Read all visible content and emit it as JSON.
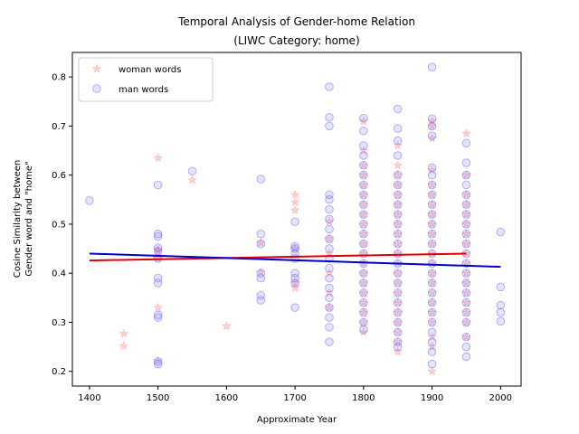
{
  "chart_data": {
    "type": "scatter",
    "title_line1": "Temporal Analysis of Gender-home Relation",
    "title_line2": "(LIWC Category: home)",
    "xlabel": "Approximate Year",
    "ylabel_line1": "Cosine Similarity between",
    "ylabel_line2": "Gender word and \"home\"",
    "xlim": [
      1375,
      2030
    ],
    "ylim": [
      0.17,
      0.85
    ],
    "xticks": [
      1400,
      1500,
      1600,
      1700,
      1800,
      1900,
      2000
    ],
    "yticks": [
      0.2,
      0.3,
      0.4,
      0.5,
      0.6,
      0.7,
      0.8
    ],
    "ytick_labels": [
      "0.2",
      "0.3",
      "0.4",
      "0.5",
      "0.6",
      "0.7",
      "0.8"
    ],
    "grid": false,
    "legend_position": "top-left",
    "series": [
      {
        "name": "woman words",
        "marker": "star",
        "color": "#ff8080",
        "alpha": 0.35,
        "points": [
          [
            1450,
            0.277
          ],
          [
            1450,
            0.252
          ],
          [
            1500,
            0.635
          ],
          [
            1500,
            0.448
          ],
          [
            1500,
            0.445
          ],
          [
            1500,
            0.43
          ],
          [
            1500,
            0.33
          ],
          [
            1500,
            0.222
          ],
          [
            1550,
            0.59
          ],
          [
            1600,
            0.292
          ],
          [
            1650,
            0.462
          ],
          [
            1650,
            0.402
          ],
          [
            1700,
            0.56
          ],
          [
            1700,
            0.545
          ],
          [
            1700,
            0.528
          ],
          [
            1700,
            0.45
          ],
          [
            1700,
            0.38
          ],
          [
            1700,
            0.37
          ],
          [
            1750,
            0.505
          ],
          [
            1750,
            0.47
          ],
          [
            1750,
            0.44
          ],
          [
            1750,
            0.4
          ],
          [
            1750,
            0.36
          ],
          [
            1750,
            0.33
          ],
          [
            1800,
            0.71
          ],
          [
            1800,
            0.65
          ],
          [
            1800,
            0.62
          ],
          [
            1800,
            0.6
          ],
          [
            1800,
            0.58
          ],
          [
            1800,
            0.56
          ],
          [
            1800,
            0.54
          ],
          [
            1800,
            0.52
          ],
          [
            1800,
            0.5
          ],
          [
            1800,
            0.48
          ],
          [
            1800,
            0.46
          ],
          [
            1800,
            0.44
          ],
          [
            1800,
            0.42
          ],
          [
            1800,
            0.4
          ],
          [
            1800,
            0.38
          ],
          [
            1800,
            0.36
          ],
          [
            1800,
            0.34
          ],
          [
            1800,
            0.32
          ],
          [
            1800,
            0.3
          ],
          [
            1800,
            0.28
          ],
          [
            1850,
            0.66
          ],
          [
            1850,
            0.62
          ],
          [
            1850,
            0.6
          ],
          [
            1850,
            0.58
          ],
          [
            1850,
            0.56
          ],
          [
            1850,
            0.54
          ],
          [
            1850,
            0.52
          ],
          [
            1850,
            0.5
          ],
          [
            1850,
            0.48
          ],
          [
            1850,
            0.46
          ],
          [
            1850,
            0.44
          ],
          [
            1850,
            0.42
          ],
          [
            1850,
            0.4
          ],
          [
            1850,
            0.38
          ],
          [
            1850,
            0.36
          ],
          [
            1850,
            0.34
          ],
          [
            1850,
            0.32
          ],
          [
            1850,
            0.3
          ],
          [
            1850,
            0.28
          ],
          [
            1850,
            0.26
          ],
          [
            1850,
            0.24
          ],
          [
            1900,
            0.71
          ],
          [
            1900,
            0.7
          ],
          [
            1900,
            0.675
          ],
          [
            1900,
            0.61
          ],
          [
            1900,
            0.58
          ],
          [
            1900,
            0.56
          ],
          [
            1900,
            0.54
          ],
          [
            1900,
            0.52
          ],
          [
            1900,
            0.5
          ],
          [
            1900,
            0.48
          ],
          [
            1900,
            0.46
          ],
          [
            1900,
            0.44
          ],
          [
            1900,
            0.42
          ],
          [
            1900,
            0.4
          ],
          [
            1900,
            0.38
          ],
          [
            1900,
            0.36
          ],
          [
            1900,
            0.34
          ],
          [
            1900,
            0.32
          ],
          [
            1900,
            0.3
          ],
          [
            1900,
            0.27
          ],
          [
            1900,
            0.25
          ],
          [
            1900,
            0.2
          ],
          [
            1950,
            0.685
          ],
          [
            1950,
            0.6
          ],
          [
            1950,
            0.56
          ],
          [
            1950,
            0.54
          ],
          [
            1950,
            0.52
          ],
          [
            1950,
            0.5
          ],
          [
            1950,
            0.48
          ],
          [
            1950,
            0.46
          ],
          [
            1950,
            0.44
          ],
          [
            1950,
            0.42
          ],
          [
            1950,
            0.4
          ],
          [
            1950,
            0.38
          ],
          [
            1950,
            0.36
          ],
          [
            1950,
            0.34
          ],
          [
            1950,
            0.32
          ],
          [
            1950,
            0.3
          ],
          [
            1950,
            0.27
          ]
        ],
        "trend": [
          [
            1400,
            0.426
          ],
          [
            1950,
            0.44
          ]
        ],
        "trend_color": "#e00000"
      },
      {
        "name": "man words",
        "marker": "circle",
        "color": "#6a6aff",
        "alpha": 0.3,
        "points": [
          [
            1400,
            0.548
          ],
          [
            1500,
            0.58
          ],
          [
            1500,
            0.48
          ],
          [
            1500,
            0.475
          ],
          [
            1500,
            0.452
          ],
          [
            1500,
            0.445
          ],
          [
            1500,
            0.43
          ],
          [
            1500,
            0.39
          ],
          [
            1500,
            0.38
          ],
          [
            1500,
            0.315
          ],
          [
            1500,
            0.31
          ],
          [
            1500,
            0.22
          ],
          [
            1500,
            0.215
          ],
          [
            1550,
            0.608
          ],
          [
            1650,
            0.592
          ],
          [
            1650,
            0.48
          ],
          [
            1650,
            0.46
          ],
          [
            1650,
            0.4
          ],
          [
            1650,
            0.39
          ],
          [
            1650,
            0.355
          ],
          [
            1650,
            0.345
          ],
          [
            1700,
            0.505
          ],
          [
            1700,
            0.455
          ],
          [
            1700,
            0.45
          ],
          [
            1700,
            0.44
          ],
          [
            1700,
            0.43
          ],
          [
            1700,
            0.4
          ],
          [
            1700,
            0.39
          ],
          [
            1700,
            0.38
          ],
          [
            1700,
            0.33
          ],
          [
            1750,
            0.78
          ],
          [
            1750,
            0.718
          ],
          [
            1750,
            0.7
          ],
          [
            1750,
            0.56
          ],
          [
            1750,
            0.55
          ],
          [
            1750,
            0.53
          ],
          [
            1750,
            0.51
          ],
          [
            1750,
            0.49
          ],
          [
            1750,
            0.47
          ],
          [
            1750,
            0.45
          ],
          [
            1750,
            0.43
          ],
          [
            1750,
            0.41
          ],
          [
            1750,
            0.39
          ],
          [
            1750,
            0.37
          ],
          [
            1750,
            0.35
          ],
          [
            1750,
            0.33
          ],
          [
            1750,
            0.31
          ],
          [
            1750,
            0.29
          ],
          [
            1750,
            0.26
          ],
          [
            1800,
            0.716
          ],
          [
            1800,
            0.69
          ],
          [
            1800,
            0.66
          ],
          [
            1800,
            0.64
          ],
          [
            1800,
            0.62
          ],
          [
            1800,
            0.6
          ],
          [
            1800,
            0.58
          ],
          [
            1800,
            0.56
          ],
          [
            1800,
            0.54
          ],
          [
            1800,
            0.52
          ],
          [
            1800,
            0.5
          ],
          [
            1800,
            0.48
          ],
          [
            1800,
            0.46
          ],
          [
            1800,
            0.44
          ],
          [
            1800,
            0.42
          ],
          [
            1800,
            0.4
          ],
          [
            1800,
            0.38
          ],
          [
            1800,
            0.36
          ],
          [
            1800,
            0.34
          ],
          [
            1800,
            0.32
          ],
          [
            1800,
            0.3
          ],
          [
            1800,
            0.285
          ],
          [
            1850,
            0.735
          ],
          [
            1850,
            0.695
          ],
          [
            1850,
            0.67
          ],
          [
            1850,
            0.64
          ],
          [
            1850,
            0.6
          ],
          [
            1850,
            0.58
          ],
          [
            1850,
            0.56
          ],
          [
            1850,
            0.54
          ],
          [
            1850,
            0.52
          ],
          [
            1850,
            0.5
          ],
          [
            1850,
            0.48
          ],
          [
            1850,
            0.46
          ],
          [
            1850,
            0.44
          ],
          [
            1850,
            0.42
          ],
          [
            1850,
            0.4
          ],
          [
            1850,
            0.38
          ],
          [
            1850,
            0.36
          ],
          [
            1850,
            0.34
          ],
          [
            1850,
            0.32
          ],
          [
            1850,
            0.3
          ],
          [
            1850,
            0.28
          ],
          [
            1850,
            0.26
          ],
          [
            1850,
            0.25
          ],
          [
            1900,
            0.82
          ],
          [
            1900,
            0.715
          ],
          [
            1900,
            0.7
          ],
          [
            1900,
            0.68
          ],
          [
            1900,
            0.615
          ],
          [
            1900,
            0.6
          ],
          [
            1900,
            0.58
          ],
          [
            1900,
            0.56
          ],
          [
            1900,
            0.54
          ],
          [
            1900,
            0.52
          ],
          [
            1900,
            0.5
          ],
          [
            1900,
            0.48
          ],
          [
            1900,
            0.46
          ],
          [
            1900,
            0.44
          ],
          [
            1900,
            0.42
          ],
          [
            1900,
            0.4
          ],
          [
            1900,
            0.38
          ],
          [
            1900,
            0.36
          ],
          [
            1900,
            0.34
          ],
          [
            1900,
            0.32
          ],
          [
            1900,
            0.3
          ],
          [
            1900,
            0.28
          ],
          [
            1900,
            0.26
          ],
          [
            1900,
            0.24
          ],
          [
            1900,
            0.215
          ],
          [
            1950,
            0.665
          ],
          [
            1950,
            0.625
          ],
          [
            1950,
            0.6
          ],
          [
            1950,
            0.58
          ],
          [
            1950,
            0.56
          ],
          [
            1950,
            0.54
          ],
          [
            1950,
            0.52
          ],
          [
            1950,
            0.5
          ],
          [
            1950,
            0.48
          ],
          [
            1950,
            0.46
          ],
          [
            1950,
            0.44
          ],
          [
            1950,
            0.42
          ],
          [
            1950,
            0.4
          ],
          [
            1950,
            0.38
          ],
          [
            1950,
            0.36
          ],
          [
            1950,
            0.34
          ],
          [
            1950,
            0.32
          ],
          [
            1950,
            0.3
          ],
          [
            1950,
            0.27
          ],
          [
            1950,
            0.25
          ],
          [
            1950,
            0.23
          ],
          [
            2000,
            0.484
          ],
          [
            2000,
            0.372
          ],
          [
            2000,
            0.335
          ],
          [
            2000,
            0.32
          ],
          [
            2000,
            0.302
          ]
        ],
        "trend": [
          [
            1400,
            0.44
          ],
          [
            2000,
            0.413
          ]
        ],
        "trend_color": "#0000cc"
      }
    ]
  }
}
